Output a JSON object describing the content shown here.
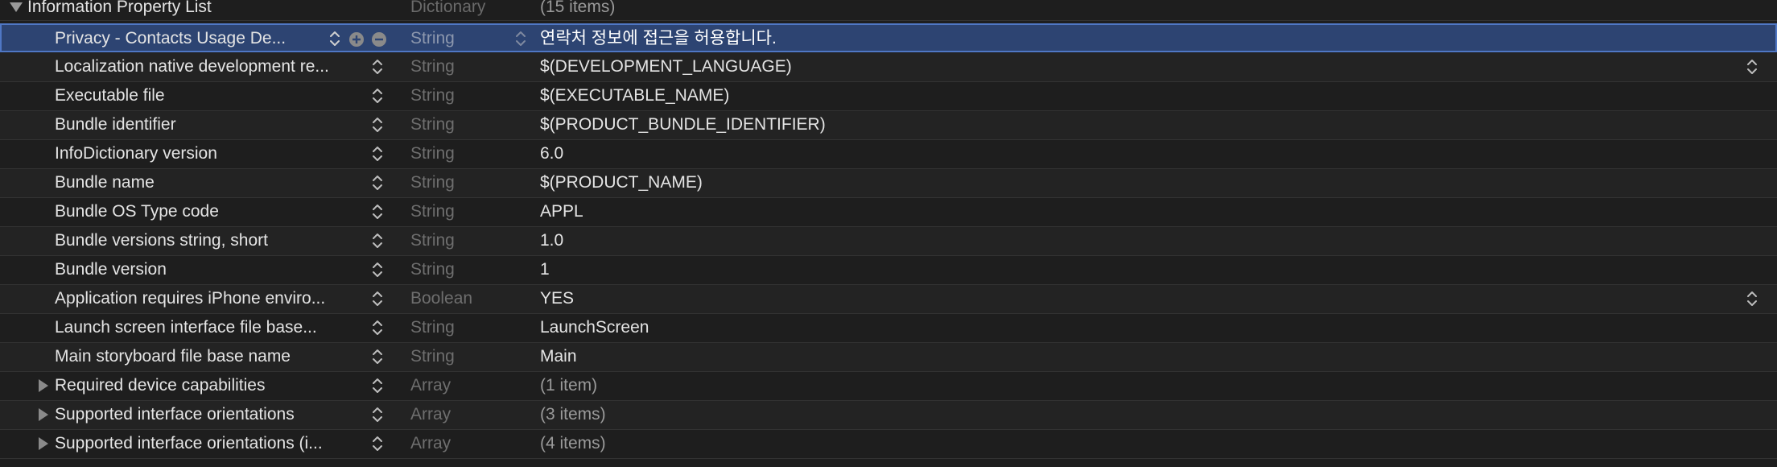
{
  "root": {
    "key": "Information Property List",
    "type": "Dictionary",
    "value": "(15 items)"
  },
  "rows": [
    {
      "key": "Privacy - Contacts Usage De...",
      "type": "String",
      "value": "연락처 정보에 접근을 허용합니다."
    },
    {
      "key": "Localization native development re...",
      "type": "String",
      "value": "$(DEVELOPMENT_LANGUAGE)"
    },
    {
      "key": "Executable file",
      "type": "String",
      "value": "$(EXECUTABLE_NAME)"
    },
    {
      "key": "Bundle identifier",
      "type": "String",
      "value": "$(PRODUCT_BUNDLE_IDENTIFIER)"
    },
    {
      "key": "InfoDictionary version",
      "type": "String",
      "value": "6.0"
    },
    {
      "key": "Bundle name",
      "type": "String",
      "value": "$(PRODUCT_NAME)"
    },
    {
      "key": "Bundle OS Type code",
      "type": "String",
      "value": "APPL"
    },
    {
      "key": "Bundle versions string, short",
      "type": "String",
      "value": "1.0"
    },
    {
      "key": "Bundle version",
      "type": "String",
      "value": "1"
    },
    {
      "key": "Application requires iPhone enviro...",
      "type": "Boolean",
      "value": "YES"
    },
    {
      "key": "Launch screen interface file base...",
      "type": "String",
      "value": "LaunchScreen"
    },
    {
      "key": "Main storyboard file base name",
      "type": "String",
      "value": "Main"
    },
    {
      "key": "Required device capabilities",
      "type": "Array",
      "value": "(1 item)"
    },
    {
      "key": "Supported interface orientations",
      "type": "Array",
      "value": "(3 items)"
    },
    {
      "key": "Supported interface orientations (i...",
      "type": "Array",
      "value": "(4 items)"
    }
  ],
  "icons": {
    "stepper": "up-down-chevron-icon",
    "add": "plus-circle-icon",
    "remove": "minus-circle-icon",
    "expand": "disclosure-triangle-icon"
  },
  "colors": {
    "background": "#1e1e1e",
    "selection": "#2d4472",
    "selection_border": "#4f77c4"
  }
}
